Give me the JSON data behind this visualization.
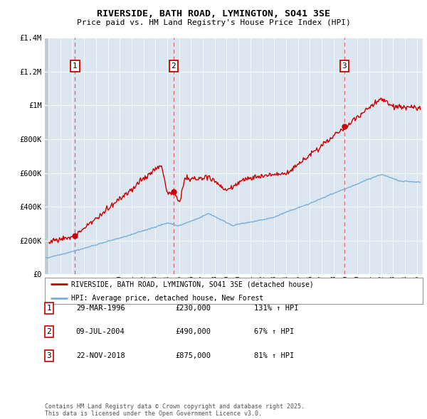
{
  "title": "RIVERSIDE, BATH ROAD, LYMINGTON, SO41 3SE",
  "subtitle": "Price paid vs. HM Land Registry's House Price Index (HPI)",
  "ylim": [
    0,
    1400000
  ],
  "yticks": [
    0,
    200000,
    400000,
    600000,
    800000,
    1000000,
    1200000,
    1400000
  ],
  "background_color": "#ffffff",
  "plot_bg_color": "#dce6f1",
  "hatch_color": "#c0cedc",
  "grid_color": "#ffffff",
  "hpi_line_color": "#7bafd4",
  "price_line_color": "#cc0000",
  "sale_marker_color": "#cc0000",
  "sale_marker_size": 6,
  "dashed_line_color": "#e06060",
  "legend_box_color": "#ffffff",
  "transaction_label_bg": "#ffffff",
  "transaction_label_border": "#cc0000",
  "purchases": [
    {
      "label": "1",
      "date_num": 1996.24,
      "price": 230000
    },
    {
      "label": "2",
      "date_num": 2004.53,
      "price": 490000
    },
    {
      "label": "3",
      "date_num": 2018.9,
      "price": 875000
    }
  ],
  "table_rows": [
    {
      "num": "1",
      "date": "29-MAR-1996",
      "price": "£230,000",
      "hpi": "131% ↑ HPI"
    },
    {
      "num": "2",
      "date": "09-JUL-2004",
      "price": "£490,000",
      "hpi": "67% ↑ HPI"
    },
    {
      "num": "3",
      "date": "22-NOV-2018",
      "price": "£875,000",
      "hpi": "81% ↑ HPI"
    }
  ],
  "footnote": "Contains HM Land Registry data © Crown copyright and database right 2025.\nThis data is licensed under the Open Government Licence v3.0.",
  "legend_entries": [
    "RIVERSIDE, BATH ROAD, LYMINGTON, SO41 3SE (detached house)",
    "HPI: Average price, detached house, New Forest"
  ],
  "xmin": 1993.7,
  "xmax": 2025.5
}
